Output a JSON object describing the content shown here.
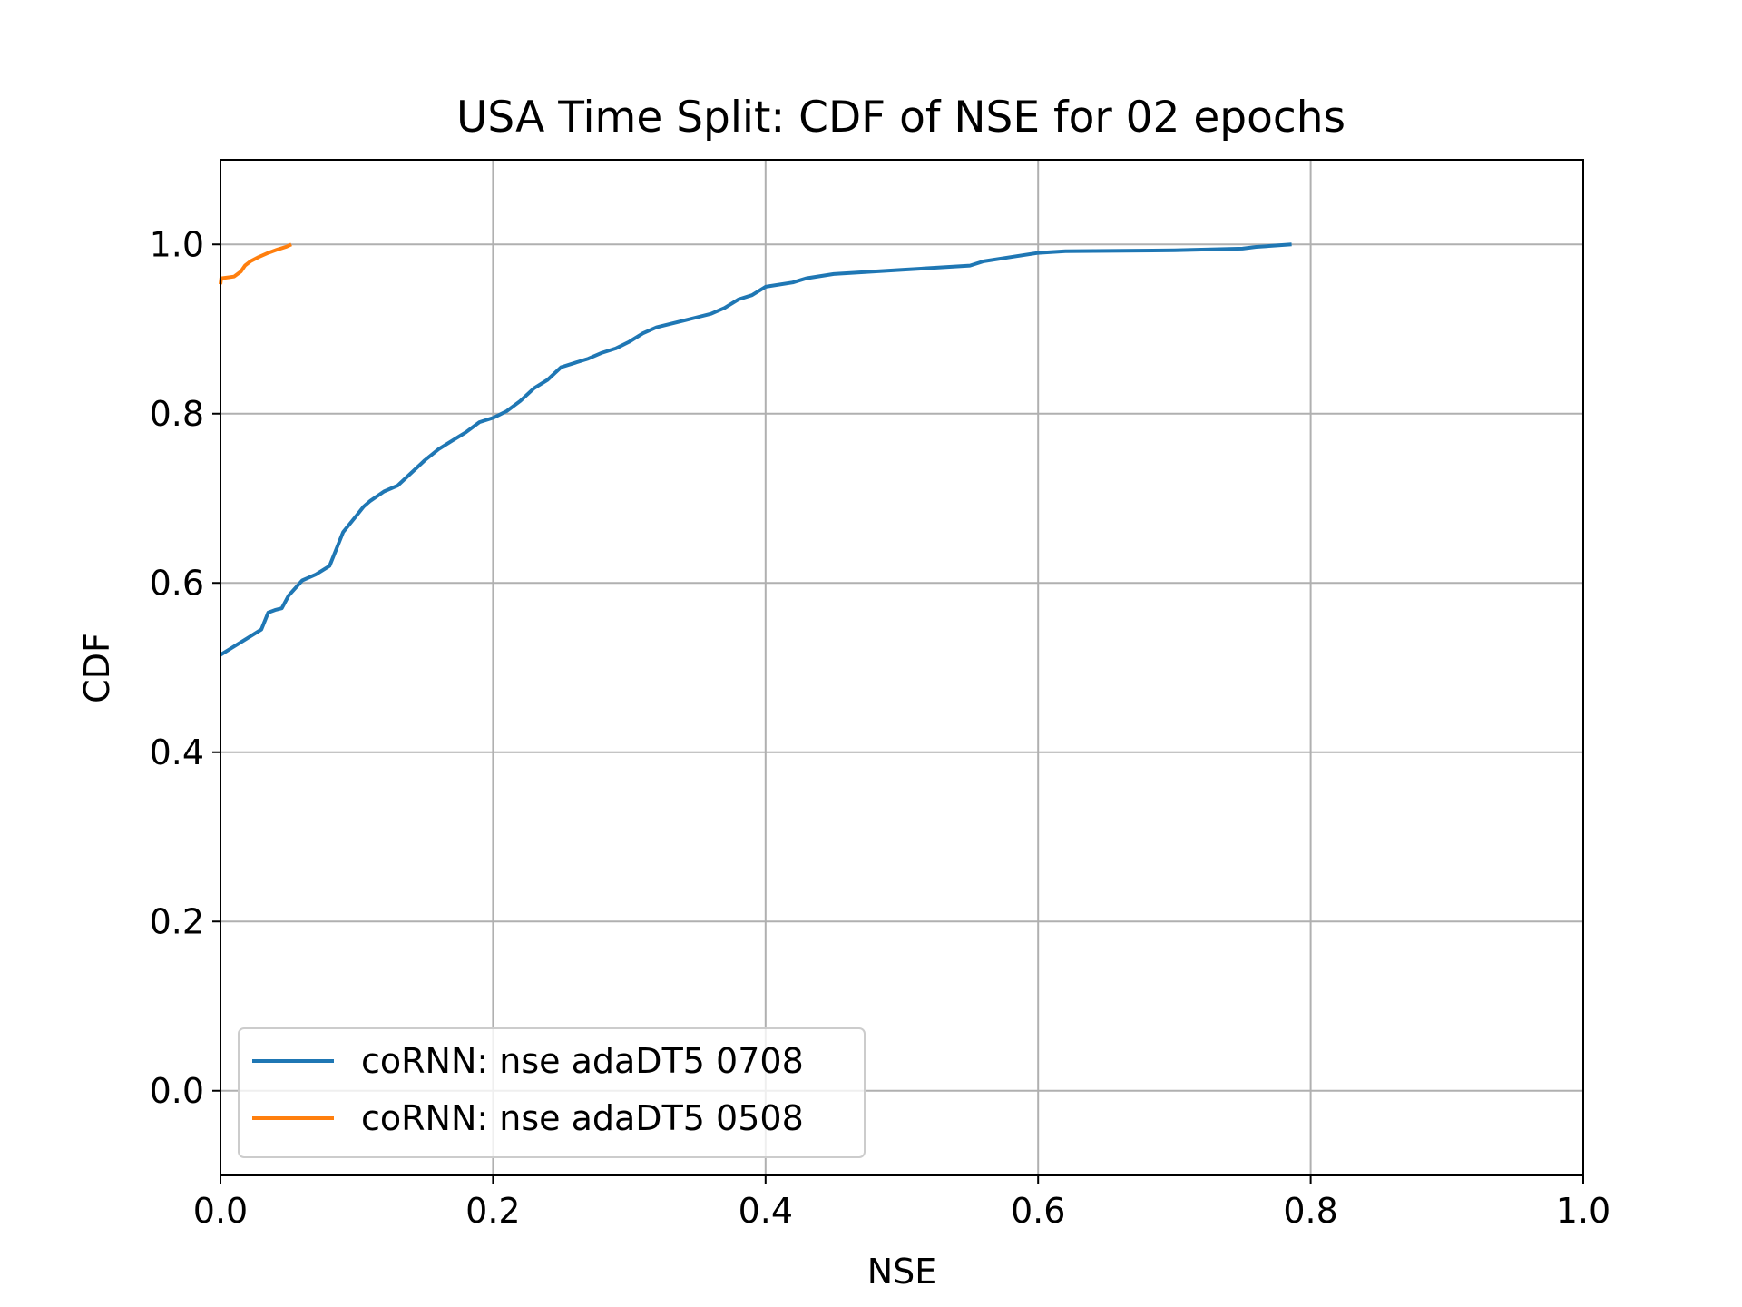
{
  "chart_data": {
    "type": "line",
    "title": "USA Time Split: CDF of NSE for 02 epochs",
    "xlabel": "NSE",
    "ylabel": "CDF",
    "xlim": [
      0.0,
      1.0
    ],
    "ylim": [
      -0.1,
      1.1
    ],
    "xticks": [
      "0.0",
      "0.2",
      "0.4",
      "0.6",
      "0.8",
      "1.0"
    ],
    "yticks": [
      "0.0",
      "0.2",
      "0.4",
      "0.6",
      "0.8",
      "1.0"
    ],
    "grid": true,
    "legend_position": "lower-left",
    "series": [
      {
        "name": "coRNN: nse adaDT5 0708",
        "color": "#1f77b4",
        "x": [
          0.0,
          0.01,
          0.02,
          0.03,
          0.035,
          0.04,
          0.045,
          0.05,
          0.06,
          0.07,
          0.08,
          0.085,
          0.09,
          0.095,
          0.1,
          0.105,
          0.11,
          0.12,
          0.13,
          0.14,
          0.15,
          0.16,
          0.17,
          0.18,
          0.19,
          0.2,
          0.21,
          0.22,
          0.23,
          0.24,
          0.25,
          0.26,
          0.27,
          0.28,
          0.29,
          0.3,
          0.31,
          0.32,
          0.34,
          0.36,
          0.37,
          0.38,
          0.39,
          0.4,
          0.42,
          0.43,
          0.45,
          0.5,
          0.52,
          0.55,
          0.56,
          0.58,
          0.6,
          0.62,
          0.7,
          0.75,
          0.76,
          0.786
        ],
        "y": [
          0.515,
          0.525,
          0.535,
          0.545,
          0.565,
          0.568,
          0.57,
          0.585,
          0.603,
          0.61,
          0.62,
          0.64,
          0.66,
          0.67,
          0.68,
          0.69,
          0.697,
          0.708,
          0.715,
          0.73,
          0.745,
          0.758,
          0.768,
          0.778,
          0.79,
          0.795,
          0.803,
          0.815,
          0.83,
          0.84,
          0.855,
          0.86,
          0.865,
          0.872,
          0.877,
          0.885,
          0.895,
          0.902,
          0.91,
          0.918,
          0.925,
          0.935,
          0.94,
          0.95,
          0.955,
          0.96,
          0.965,
          0.97,
          0.972,
          0.975,
          0.98,
          0.985,
          0.99,
          0.992,
          0.993,
          0.995,
          0.997,
          1.0
        ]
      },
      {
        "name": "coRNN: nse adaDT5 0508",
        "color": "#ff7f0e",
        "x": [
          0.0,
          0.0005,
          0.01,
          0.015,
          0.018,
          0.022,
          0.028,
          0.035,
          0.042,
          0.048,
          0.052
        ],
        "y": [
          0.953,
          0.96,
          0.962,
          0.968,
          0.975,
          0.98,
          0.985,
          0.99,
          0.994,
          0.997,
          1.0
        ]
      }
    ]
  }
}
